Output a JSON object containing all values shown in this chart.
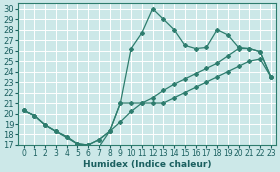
{
  "xlabel": "Humidex (Indice chaleur)",
  "bg_color": "#cce8e8",
  "grid_color": "#ffffff",
  "line_color": "#2e7d6e",
  "xlim": [
    -0.5,
    23.5
  ],
  "ylim": [
    17,
    30.5
  ],
  "yticks": [
    17,
    18,
    19,
    20,
    21,
    22,
    23,
    24,
    25,
    26,
    27,
    28,
    29,
    30
  ],
  "xticks": [
    0,
    1,
    2,
    3,
    4,
    5,
    6,
    7,
    8,
    9,
    10,
    11,
    12,
    13,
    14,
    15,
    16,
    17,
    18,
    19,
    20,
    21,
    22,
    23
  ],
  "curve_peak_x": [
    0,
    1,
    2,
    3,
    4,
    5,
    6,
    7,
    8,
    9,
    10,
    11,
    12,
    13,
    14,
    15,
    16,
    17,
    18,
    19,
    20,
    21,
    22,
    23
  ],
  "curve_peak_y": [
    20.3,
    19.8,
    18.9,
    18.3,
    17.8,
    17.1,
    17.0,
    17.5,
    18.3,
    21.0,
    26.2,
    27.7,
    30.0,
    29.0,
    28.0,
    26.5,
    26.2,
    26.3,
    28.0,
    27.5,
    26.3,
    26.2,
    25.9,
    23.5
  ],
  "curve_mid_x": [
    0,
    1,
    2,
    3,
    4,
    5,
    6,
    7,
    8,
    9,
    10,
    11,
    12,
    13,
    14,
    15,
    16,
    17,
    18,
    19,
    20,
    21,
    22,
    23
  ],
  "curve_mid_y": [
    20.3,
    19.8,
    18.9,
    18.3,
    17.8,
    17.1,
    17.0,
    17.5,
    18.3,
    21.0,
    21.0,
    21.0,
    21.0,
    21.0,
    21.5,
    22.0,
    22.5,
    23.0,
    23.5,
    24.0,
    24.5,
    25.0,
    25.2,
    23.5
  ],
  "curve_low_x": [
    0,
    1,
    2,
    3,
    5,
    6,
    7,
    8,
    9,
    10,
    11,
    12,
    13,
    14,
    15,
    16,
    17,
    18,
    19,
    20,
    21,
    22,
    23
  ],
  "curve_low_y": [
    20.3,
    19.8,
    18.9,
    18.3,
    17.1,
    17.0,
    16.8,
    18.3,
    19.2,
    20.2,
    21.0,
    21.5,
    22.2,
    22.8,
    23.3,
    23.8,
    24.3,
    24.8,
    25.5,
    26.2,
    26.2,
    25.9,
    23.5
  ]
}
